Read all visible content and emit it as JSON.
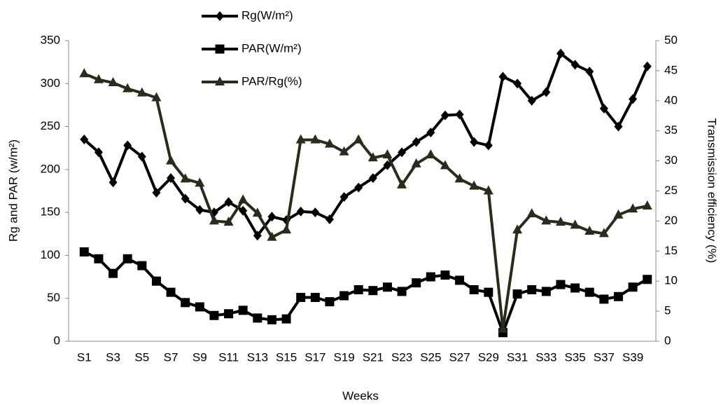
{
  "chart_data": {
    "type": "line",
    "categories": [
      "S1",
      null,
      "S3",
      null,
      "S5",
      null,
      "S7",
      null,
      "S9",
      null,
      "S11",
      null,
      "S13",
      null,
      "S15",
      null,
      "S17",
      null,
      "S19",
      null,
      "S21",
      null,
      "S23",
      null,
      "S25",
      null,
      "S27",
      null,
      "S29",
      null,
      "S31",
      null,
      "S33",
      null,
      "S35",
      null,
      "S37",
      null,
      "S39",
      null
    ],
    "x_label": "Weeks",
    "y_label": "Rg and PAR (w/m²)",
    "y2_label": "Transmission efficiency (%)",
    "ylim": [
      0,
      350
    ],
    "yticks": [
      0,
      50,
      100,
      150,
      200,
      250,
      300,
      350
    ],
    "y2lim": [
      0,
      50
    ],
    "y2ticks": [
      0,
      5,
      10,
      15,
      20,
      25,
      30,
      35,
      40,
      45,
      50
    ],
    "legend": "top",
    "series": [
      {
        "name": "Rg(W/m²)",
        "color": "#000000",
        "marker": "diamond",
        "values": [
          235,
          220,
          185,
          228,
          215,
          173,
          190,
          166,
          153,
          150,
          162,
          152,
          123,
          145,
          141,
          151,
          150,
          142,
          168,
          179,
          190,
          205,
          220,
          232,
          243,
          263,
          264,
          232,
          228,
          308,
          300,
          280,
          290,
          335,
          322,
          314,
          271,
          250,
          282,
          320
        ]
      },
      {
        "name": "PAR(W/m²)",
        "color": "#000000",
        "marker": "square",
        "values": [
          104,
          96,
          79,
          96,
          88,
          70,
          57,
          45,
          40,
          30,
          32,
          36,
          27,
          25,
          26,
          51,
          51,
          46,
          53,
          60,
          59,
          63,
          58,
          68,
          75,
          77,
          71,
          60,
          57,
          10,
          55,
          60,
          58,
          66,
          62,
          57,
          49,
          52,
          63,
          72
        ]
      },
      {
        "name": "PAR/Rg(%)",
        "color": "#2b2a1c",
        "marker": "triangle",
        "axis": "y2",
        "values": [
          44.5,
          43.5,
          43,
          42,
          41.3,
          40.5,
          30,
          27,
          26.3,
          20,
          19.8,
          23.5,
          21.3,
          17.3,
          18.5,
          33.5,
          33.5,
          32.8,
          31.5,
          33.5,
          30.5,
          31,
          26,
          29.5,
          31,
          29.2,
          27,
          25.8,
          25,
          2,
          18.5,
          21.2,
          20,
          19.8,
          19.3,
          18.3,
          17.9,
          21,
          22,
          22.5
        ]
      }
    ]
  }
}
